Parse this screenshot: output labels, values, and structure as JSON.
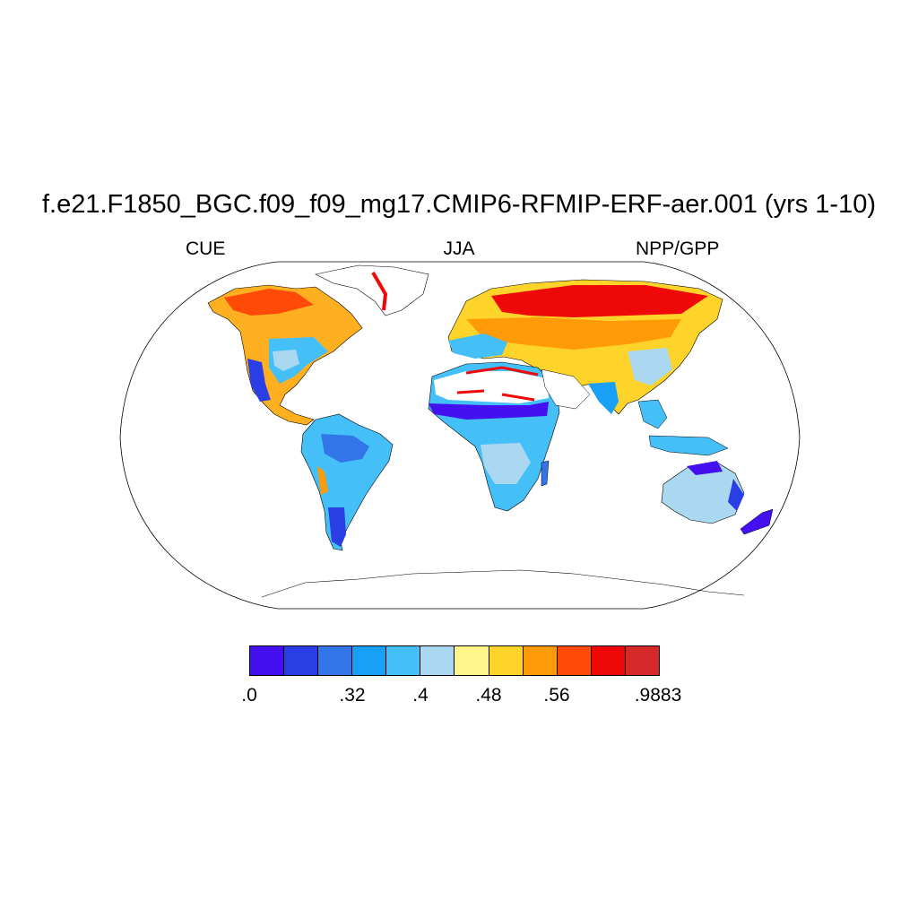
{
  "title": "f.e21.F1850_BGC.f09_f09_mg17.CMIP6-RFMIP-ERF-aer.001 (yrs 1-10)",
  "subtitle_left": "CUE",
  "subtitle_center": "JJA",
  "subtitle_right": "NPP/GPP",
  "colorbar": {
    "colors": [
      "#4410f0",
      "#2a3ee6",
      "#3275e8",
      "#18a0f6",
      "#44bff8",
      "#aad8f0",
      "#fff58a",
      "#ffd42a",
      "#ff9a08",
      "#ff4a08",
      "#ee0808",
      "#d62a2a"
    ],
    "labels": [
      ".0",
      ".32",
      ".4",
      ".48",
      ".56",
      ".9883"
    ]
  },
  "map": {
    "projection": "Robinson",
    "field": "CUE NPP/GPP"
  }
}
